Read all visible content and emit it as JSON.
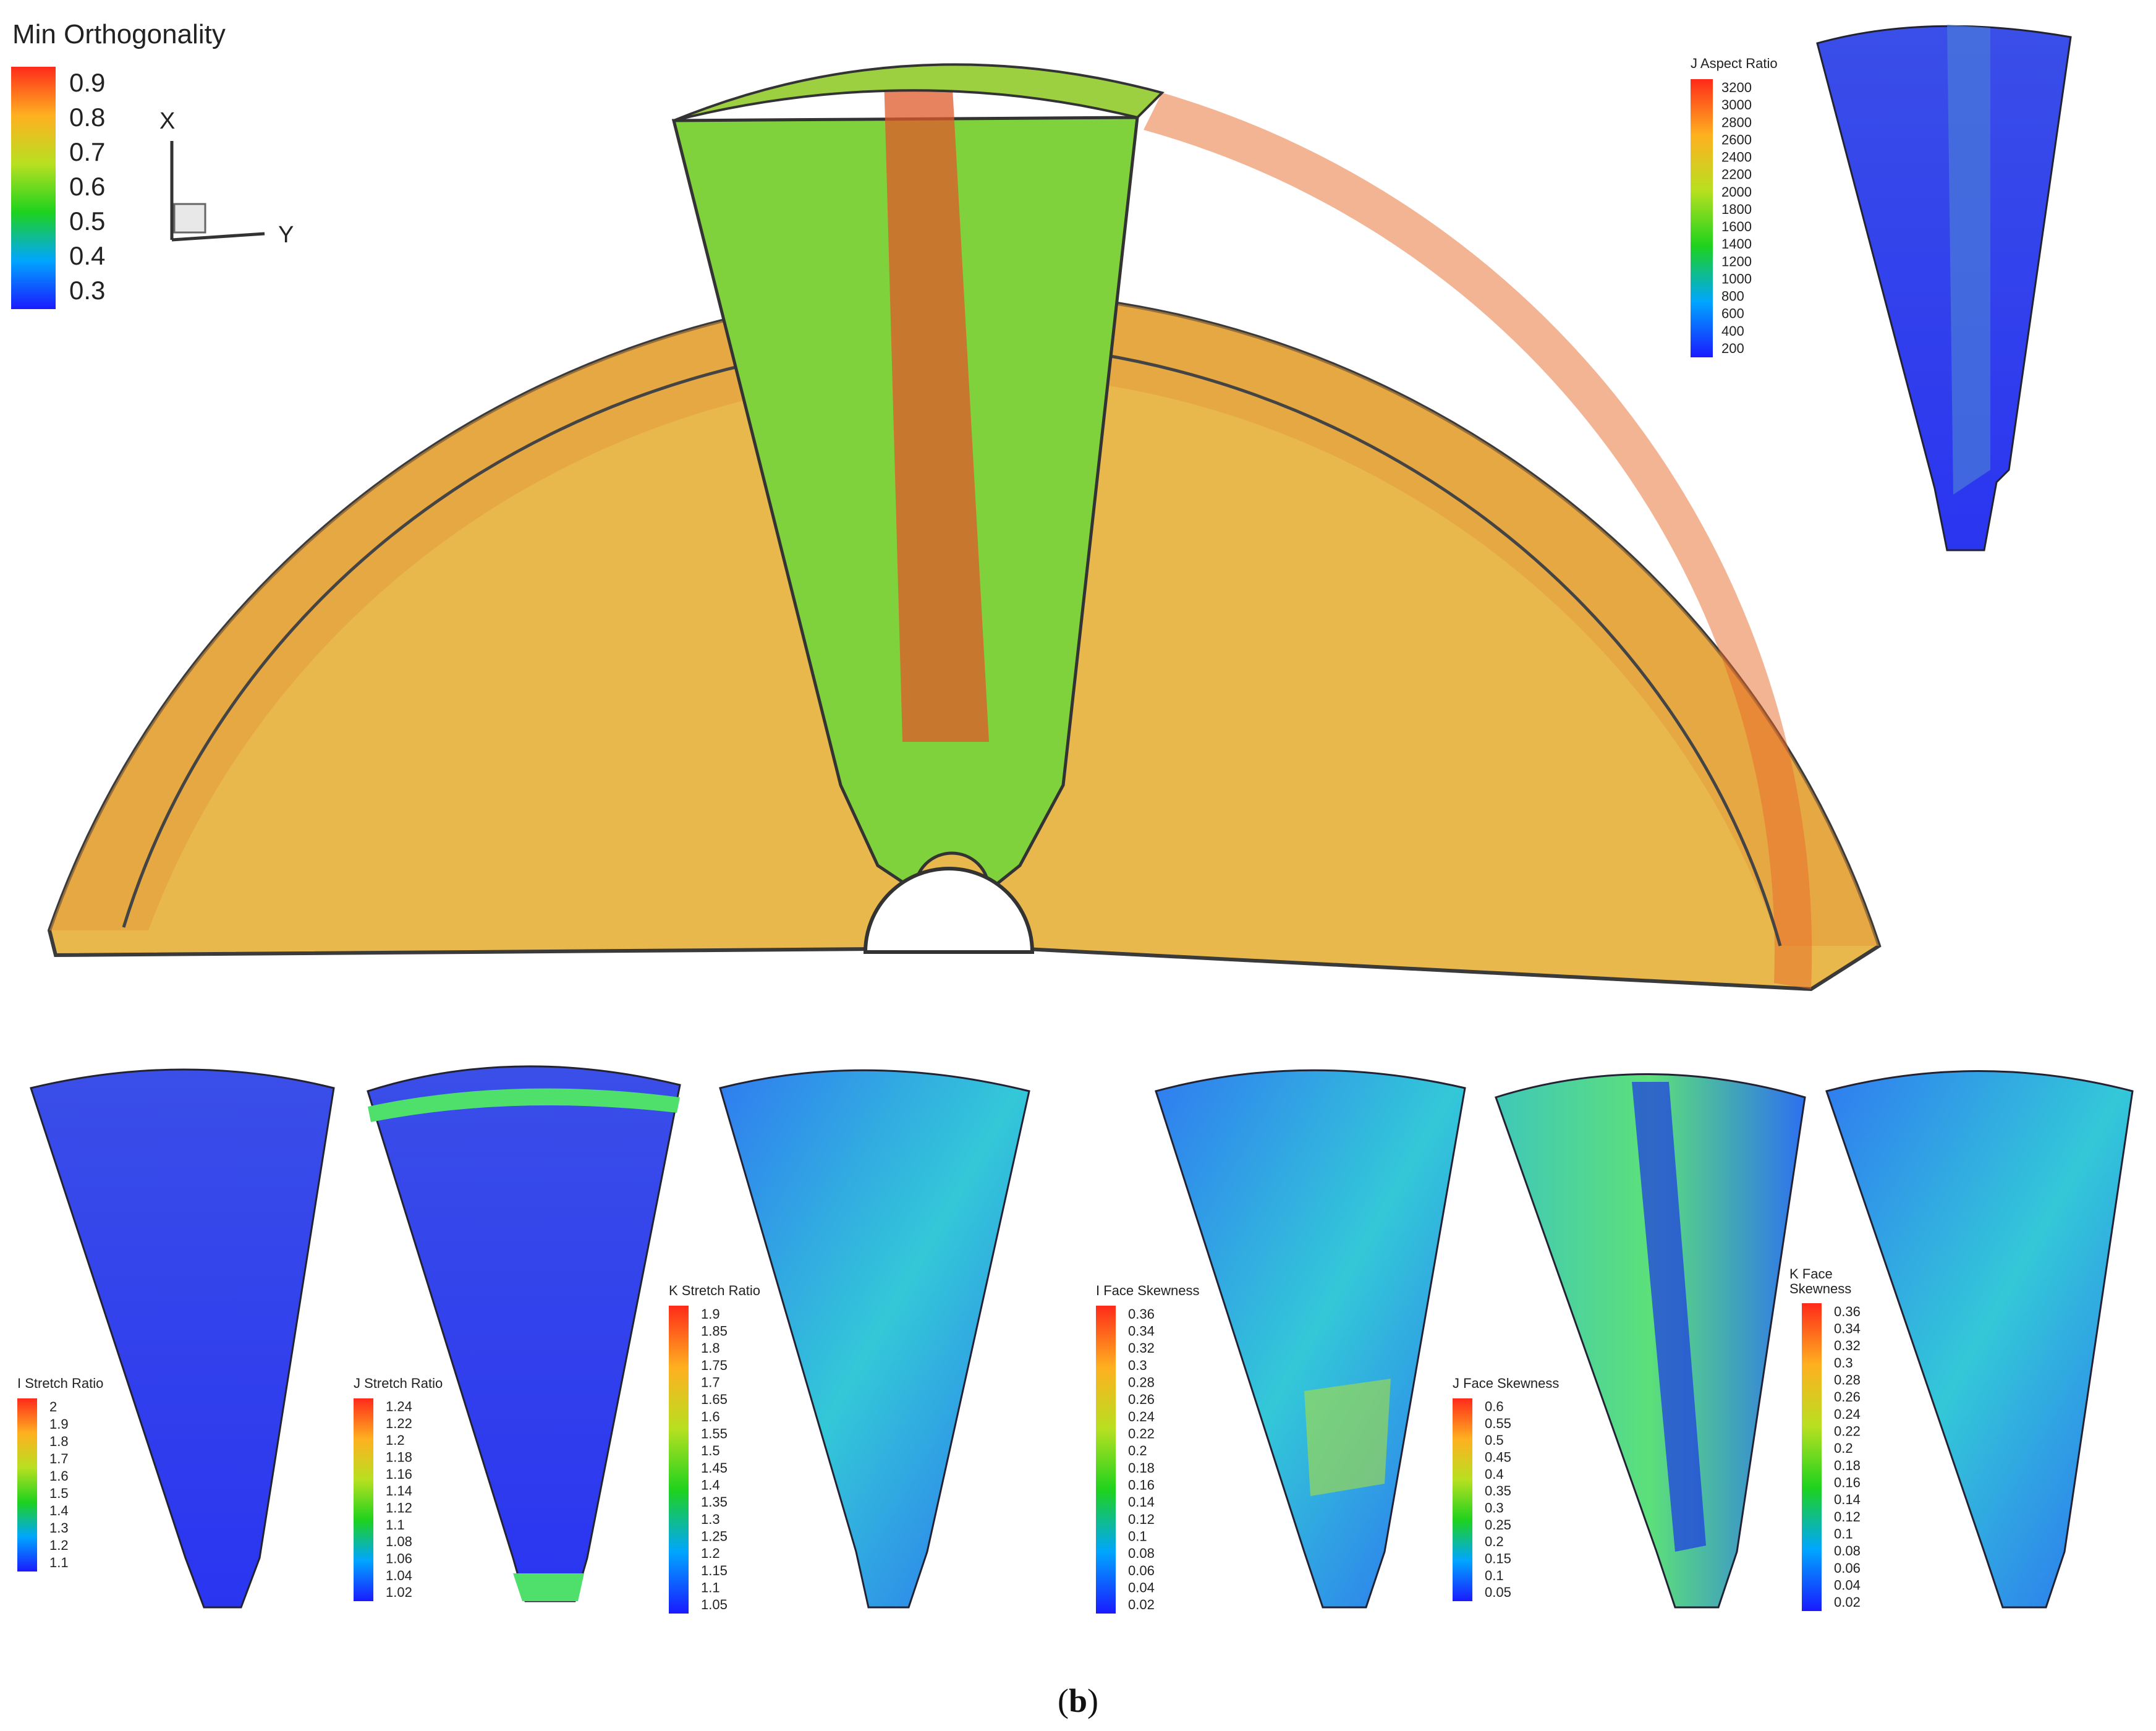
{
  "main_legend": {
    "title": "Min Orthogonality",
    "ticks": [
      "0.9",
      "0.8",
      "0.7",
      "0.6",
      "0.5",
      "0.4",
      "0.3"
    ]
  },
  "axis_triad": {
    "x_label": "X",
    "y_label": "Y"
  },
  "caption": {
    "open": "(",
    "letter": "b",
    "close": ")"
  },
  "colors": {
    "low": "#1a1aff",
    "mid": "#1ed21e",
    "high": "#ff2a1a",
    "mesh_fill": "#e8b44a"
  },
  "subplots": [
    {
      "id": "j-aspect-ratio",
      "legend_title": [
        "J Aspect Ratio"
      ],
      "ticks": [
        "3200",
        "3000",
        "2800",
        "2600",
        "2400",
        "2200",
        "2000",
        "1800",
        "1600",
        "1400",
        "1200",
        "1000",
        "800",
        "600",
        "400",
        "200"
      ]
    },
    {
      "id": "i-stretch-ratio",
      "legend_title": [
        "I Stretch Ratio"
      ],
      "ticks": [
        "2",
        "1.9",
        "1.8",
        "1.7",
        "1.6",
        "1.5",
        "1.4",
        "1.3",
        "1.2",
        "1.1"
      ]
    },
    {
      "id": "j-stretch-ratio",
      "legend_title": [
        "J Stretch Ratio"
      ],
      "ticks": [
        "1.24",
        "1.22",
        "1.2",
        "1.18",
        "1.16",
        "1.14",
        "1.12",
        "1.1",
        "1.08",
        "1.06",
        "1.04",
        "1.02"
      ]
    },
    {
      "id": "k-stretch-ratio",
      "legend_title": [
        "K Stretch Ratio"
      ],
      "ticks": [
        "1.9",
        "1.85",
        "1.8",
        "1.75",
        "1.7",
        "1.65",
        "1.6",
        "1.55",
        "1.5",
        "1.45",
        "1.4",
        "1.35",
        "1.3",
        "1.25",
        "1.2",
        "1.15",
        "1.1",
        "1.05"
      ]
    },
    {
      "id": "i-face-skewness",
      "legend_title": [
        "I Face Skewness"
      ],
      "ticks": [
        "0.36",
        "0.34",
        "0.32",
        "0.3",
        "0.28",
        "0.26",
        "0.24",
        "0.22",
        "0.2",
        "0.18",
        "0.16",
        "0.14",
        "0.12",
        "0.1",
        "0.08",
        "0.06",
        "0.04",
        "0.02"
      ]
    },
    {
      "id": "j-face-skewness",
      "legend_title": [
        "J Face Skewness"
      ],
      "ticks": [
        "0.6",
        "0.55",
        "0.5",
        "0.45",
        "0.4",
        "0.35",
        "0.3",
        "0.25",
        "0.2",
        "0.15",
        "0.1",
        "0.05"
      ]
    },
    {
      "id": "k-face-skewness",
      "legend_title": [
        "K Face",
        "Skewness"
      ],
      "ticks": [
        "0.36",
        "0.34",
        "0.32",
        "0.3",
        "0.28",
        "0.26",
        "0.24",
        "0.22",
        "0.2",
        "0.18",
        "0.16",
        "0.14",
        "0.12",
        "0.1",
        "0.08",
        "0.06",
        "0.04",
        "0.02"
      ]
    }
  ]
}
